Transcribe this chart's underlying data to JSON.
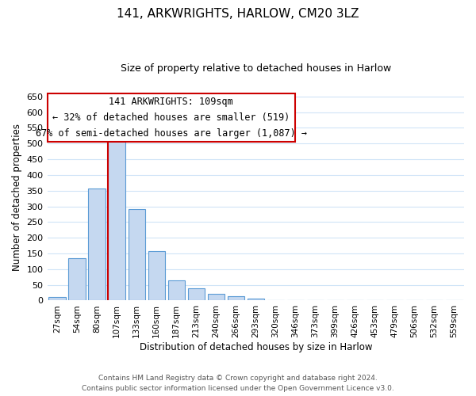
{
  "title": "141, ARKWRIGHTS, HARLOW, CM20 3LZ",
  "subtitle": "Size of property relative to detached houses in Harlow",
  "xlabel": "Distribution of detached houses by size in Harlow",
  "ylabel": "Number of detached properties",
  "bar_labels": [
    "27sqm",
    "54sqm",
    "80sqm",
    "107sqm",
    "133sqm",
    "160sqm",
    "187sqm",
    "213sqm",
    "240sqm",
    "266sqm",
    "293sqm",
    "320sqm",
    "346sqm",
    "373sqm",
    "399sqm",
    "426sqm",
    "453sqm",
    "479sqm",
    "506sqm",
    "532sqm",
    "559sqm"
  ],
  "bar_values": [
    10,
    135,
    358,
    535,
    290,
    157,
    65,
    40,
    22,
    14,
    5,
    0,
    0,
    0,
    0,
    1,
    0,
    0,
    0,
    0,
    1
  ],
  "bar_color": "#c5d8f0",
  "bar_edge_color": "#5b9bd5",
  "highlight_color": "#cc0000",
  "vline_x_index": 3,
  "ylim": [
    0,
    660
  ],
  "yticks": [
    0,
    50,
    100,
    150,
    200,
    250,
    300,
    350,
    400,
    450,
    500,
    550,
    600,
    650
  ],
  "annotation_title": "141 ARKWRIGHTS: 109sqm",
  "annotation_line1": "← 32% of detached houses are smaller (519)",
  "annotation_line2": "67% of semi-detached houses are larger (1,087) →",
  "footer_line1": "Contains HM Land Registry data © Crown copyright and database right 2024.",
  "footer_line2": "Contains public sector information licensed under the Open Government Licence v3.0.",
  "background_color": "#ffffff",
  "grid_color": "#d0e4f7"
}
